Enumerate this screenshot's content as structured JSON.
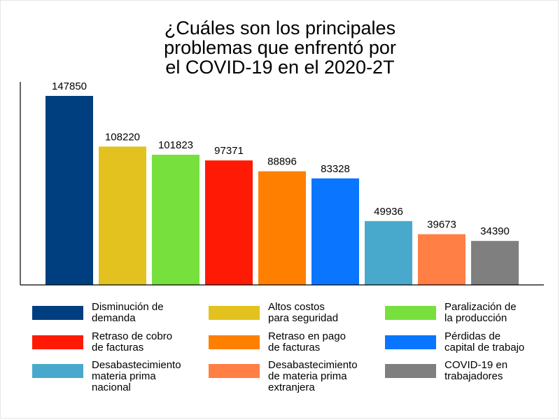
{
  "title_lines": [
    "¿Cuáles son los principales",
    "problemas que enfrentó por",
    "el COVID-19 en el 2020-2T"
  ],
  "chart_data": {
    "type": "bar",
    "title": "¿Cuáles son los principales problemas que enfrentó por el COVID-19 en el 2020-2T",
    "xlabel": "",
    "ylabel": "",
    "ylim": [
      0,
      160000
    ],
    "grid": false,
    "legend_position": "bottom",
    "series": [
      {
        "name": "Disminución de demanda",
        "value": 147850,
        "color": "#003f7f"
      },
      {
        "name": "Altos costos para seguridad",
        "value": 108220,
        "color": "#e3c21f"
      },
      {
        "name": "Paralización de la producción",
        "value": 101823,
        "color": "#77e03d"
      },
      {
        "name": "Retraso de cobro de facturas",
        "value": 97371,
        "color": "#ff1a06"
      },
      {
        "name": "Retraso en pago de facturas",
        "value": 88896,
        "color": "#ff8000"
      },
      {
        "name": "Pérdidas de capital de trabajo",
        "value": 83328,
        "color": "#0a75ff"
      },
      {
        "name": "Desabastecimiento materia prima nacional",
        "value": 49936,
        "color": "#49a9cc"
      },
      {
        "name": "Desabastecimiento de materia prima extranjera",
        "value": 39673,
        "color": "#ff7f45"
      },
      {
        "name": "COVID-19 en trabajadores",
        "value": 34390,
        "color": "#7f7f7f"
      }
    ]
  },
  "legend": [
    {
      "label": "Disminución de\ndemanda",
      "color": "#003f7f"
    },
    {
      "label": "Altos costos\npara seguridad",
      "color": "#e3c21f"
    },
    {
      "label": "Paralización de\nla producción",
      "color": "#77e03d"
    },
    {
      "label": "Retraso de cobro\nde facturas",
      "color": "#ff1a06"
    },
    {
      "label": "Retraso en pago\nde facturas",
      "color": "#ff8000"
    },
    {
      "label": "Pérdidas de\ncapital de trabajo",
      "color": "#0a75ff"
    },
    {
      "label": "Desabastecimiento\nmateria prima\nnacional",
      "color": "#49a9cc"
    },
    {
      "label": "Desabastecimiento\nde materia prima\nextranjera",
      "color": "#ff7f45"
    },
    {
      "label": "COVID-19 en\ntrabajadores",
      "color": "#7f7f7f"
    }
  ]
}
